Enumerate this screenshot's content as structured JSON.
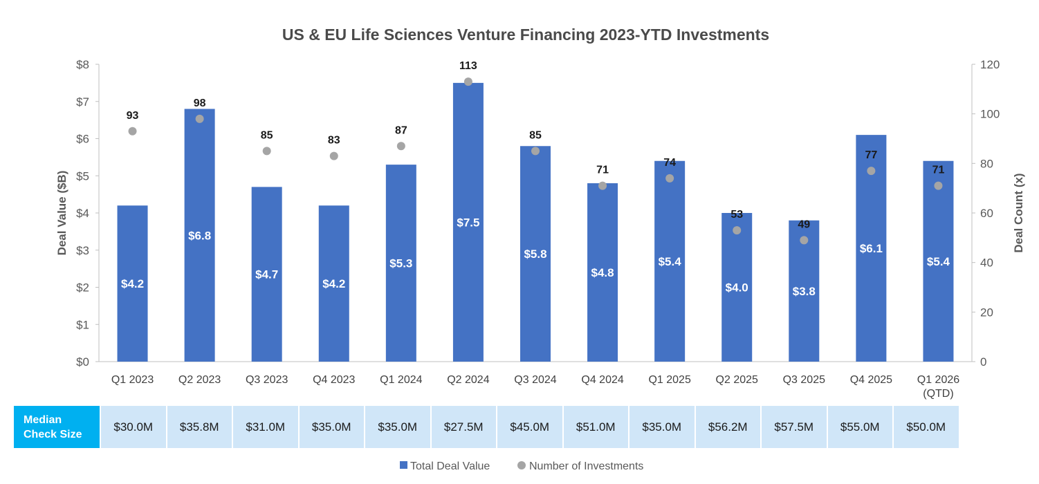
{
  "chart_data": {
    "type": "bar",
    "title": "US & EU Life Sciences Venture Financing 2023-YTD Investments",
    "xlabel": "",
    "ylabel": "Deal Value ($B)",
    "y2label": "Deal Count (x)",
    "ylim": [
      0,
      8
    ],
    "y2lim": [
      0,
      120
    ],
    "y_ticks": [
      "$0",
      "$1",
      "$2",
      "$3",
      "$4",
      "$5",
      "$6",
      "$7",
      "$8"
    ],
    "y2_ticks": [
      "0",
      "20",
      "40",
      "60",
      "80",
      "100",
      "120"
    ],
    "categories": [
      "Q1 2023",
      "Q2 2023",
      "Q3 2023",
      "Q4 2023",
      "Q1 2024",
      "Q2 2024",
      "Q3 2024",
      "Q4 2024",
      "Q1 2025",
      "Q2 2025",
      "Q3 2025",
      "Q4 2025",
      "Q1 2026\n(QTD)"
    ],
    "series": [
      {
        "name": "Total Deal Value",
        "type": "bar",
        "axis": "left",
        "color": "#4472c4",
        "values": [
          4.2,
          6.8,
          4.7,
          4.2,
          5.3,
          7.5,
          5.8,
          4.8,
          5.4,
          4.0,
          3.8,
          6.1,
          5.4
        ],
        "labels": [
          "$4.2",
          "$6.8",
          "$4.7",
          "$4.2",
          "$5.3",
          "$7.5",
          "$5.8",
          "$4.8",
          "$5.4",
          "$4.0",
          "$3.8",
          "$6.1",
          "$5.4"
        ]
      },
      {
        "name": "Number of Investments",
        "type": "scatter",
        "axis": "right",
        "color": "#a5a5a5",
        "values": [
          93,
          98,
          85,
          83,
          87,
          113,
          85,
          71,
          74,
          53,
          49,
          77,
          71
        ],
        "labels": [
          "93",
          "98",
          "85",
          "83",
          "87",
          "113",
          "85",
          "71",
          "74",
          "53",
          "49",
          "77",
          "71"
        ]
      }
    ],
    "grid": false,
    "legend_position": "bottom"
  },
  "median_table": {
    "header": "Median\nCheck Size",
    "values": [
      "$30.0M",
      "$35.8M",
      "$31.0M",
      "$35.0M",
      "$35.0M",
      "$27.5M",
      "$45.0M",
      "$51.0M",
      "$35.0M",
      "$56.2M",
      "$57.5M",
      "$55.0M",
      "$50.0M"
    ],
    "header_color": "#00b0f0",
    "cell_color": "#d0e6f8"
  }
}
